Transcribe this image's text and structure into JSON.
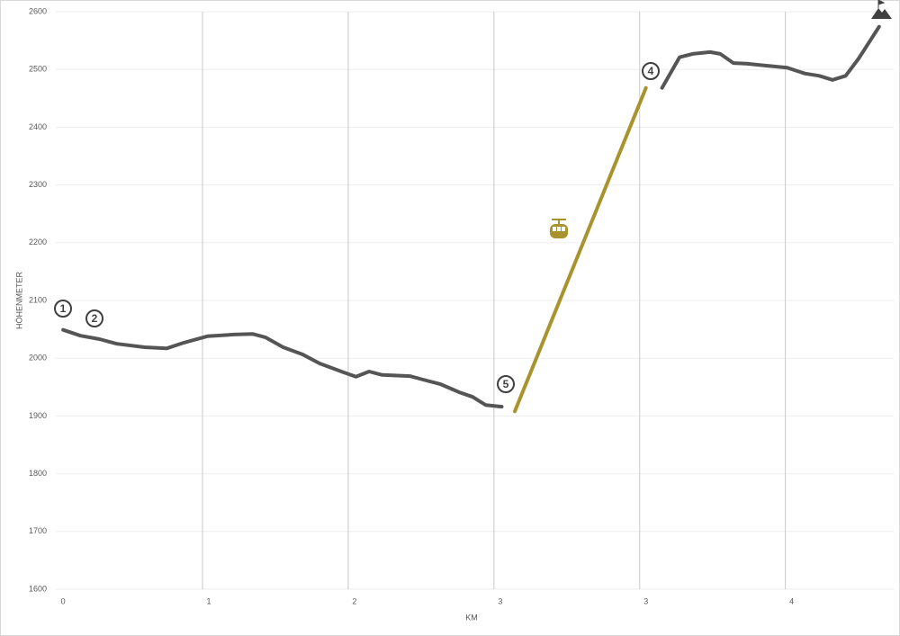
{
  "chart_data": {
    "type": "line",
    "x_label": "KM",
    "y_label": "HÖHENMETER",
    "xlim": [
      -0.05,
      5.7
    ],
    "xticks": [
      0,
      1,
      2,
      3,
      {
        "value": 4,
        "label": "3"
      },
      {
        "value": 5,
        "label": "4"
      }
    ],
    "ylim": [
      1600,
      2600
    ],
    "yticks": [
      1600,
      1700,
      1800,
      1900,
      2000,
      2100,
      2200,
      2300,
      2400,
      2500,
      2600
    ],
    "grid": true,
    "series": [
      {
        "color": "#555555",
        "x": [
          0,
          0.12,
          0.25,
          0.37,
          0.56,
          0.71,
          0.83,
          0.99,
          1.17,
          1.3,
          1.39,
          1.51,
          1.64,
          1.76,
          1.91,
          2.01,
          2.1,
          2.19,
          2.38,
          2.47,
          2.59,
          2.72,
          2.81,
          2.9,
          3.01
        ],
        "values": [
          2049,
          2039,
          2033,
          2025,
          2019,
          2017,
          2027,
          2038,
          2041,
          2042,
          2036,
          2019,
          2007,
          1991,
          1977,
          1968,
          1977,
          1971,
          1969,
          1963,
          1955,
          1941,
          1933,
          1919,
          1916
        ]
      },
      {
        "color": "#a8932f",
        "x": [
          3.1,
          4.0
        ],
        "values": [
          1908,
          2468
        ]
      },
      {
        "color": "#555555",
        "x": [
          4.11,
          4.23,
          4.32,
          4.44,
          4.51,
          4.6,
          4.69,
          4.81,
          4.97,
          5.09,
          5.19,
          5.28,
          5.37,
          5.46,
          5.6
        ],
        "values": [
          2468,
          2521,
          2527,
          2530,
          2527,
          2511,
          2510,
          2507,
          2503,
          2493,
          2489,
          2482,
          2489,
          2519,
          2574
        ]
      }
    ],
    "annotations": [
      "1",
      "2",
      "5",
      "4"
    ]
  }
}
